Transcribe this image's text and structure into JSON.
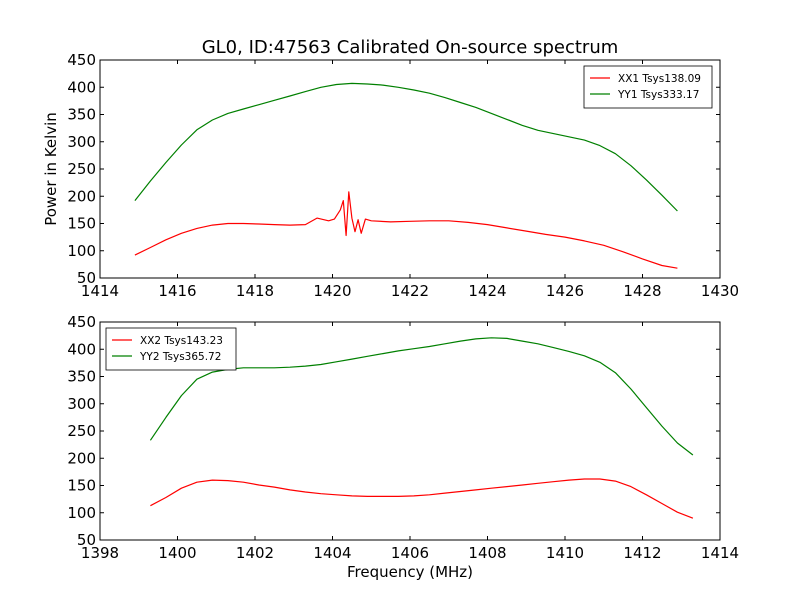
{
  "chart_data": [
    {
      "type": "line",
      "title": "GL0, ID:47563 Calibrated On-source spectrum",
      "xlabel": "",
      "ylabel": "Power in Kelvin",
      "xlim": [
        1414,
        1430
      ],
      "ylim": [
        50,
        450
      ],
      "xticks": [
        "1414",
        "1416",
        "1418",
        "1420",
        "1422",
        "1424",
        "1426",
        "1428",
        "1430"
      ],
      "yticks": [
        "50",
        "100",
        "150",
        "200",
        "250",
        "300",
        "350",
        "400",
        "450"
      ],
      "grid": false,
      "legend": "top-right",
      "series": [
        {
          "name": "XX1 Tsys138.09",
          "color": "#ff0000",
          "x": [
            1414.9,
            1415.3,
            1415.7,
            1416.1,
            1416.5,
            1416.9,
            1417.3,
            1417.7,
            1418.1,
            1418.5,
            1418.9,
            1419.3,
            1419.6,
            1419.9,
            1420.05,
            1420.2,
            1420.28,
            1420.35,
            1420.42,
            1420.5,
            1420.58,
            1420.66,
            1420.74,
            1420.85,
            1421.0,
            1421.5,
            1422.0,
            1422.5,
            1423.0,
            1423.5,
            1424.0,
            1424.5,
            1425.0,
            1425.5,
            1426.0,
            1426.5,
            1427.0,
            1427.5,
            1428.0,
            1428.5,
            1428.9
          ],
          "values": [
            92,
            106,
            120,
            132,
            141,
            147,
            150,
            150,
            149,
            148,
            147,
            148,
            160,
            155,
            158,
            175,
            192,
            128,
            208,
            160,
            135,
            157,
            132,
            158,
            155,
            153,
            154,
            155,
            155,
            152,
            148,
            142,
            136,
            130,
            125,
            118,
            110,
            98,
            85,
            73,
            68
          ]
        },
        {
          "name": "YY1 Tsys333.17",
          "color": "#008000",
          "x": [
            1414.9,
            1415.3,
            1415.7,
            1416.1,
            1416.5,
            1416.9,
            1417.3,
            1417.7,
            1418.1,
            1418.5,
            1418.9,
            1419.3,
            1419.7,
            1420.1,
            1420.5,
            1420.9,
            1421.3,
            1421.7,
            1422.1,
            1422.5,
            1422.9,
            1423.3,
            1423.7,
            1424.1,
            1424.5,
            1424.9,
            1425.3,
            1425.7,
            1426.1,
            1426.5,
            1426.9,
            1427.3,
            1427.7,
            1428.1,
            1428.5,
            1428.9
          ],
          "values": [
            192,
            228,
            262,
            294,
            322,
            340,
            352,
            360,
            368,
            376,
            384,
            392,
            400,
            405,
            407,
            406,
            404,
            400,
            395,
            389,
            381,
            372,
            363,
            352,
            341,
            330,
            321,
            315,
            309,
            303,
            293,
            278,
            256,
            230,
            202,
            173
          ]
        }
      ]
    },
    {
      "type": "line",
      "title": "",
      "xlabel": "Frequency (MHz)",
      "ylabel": "",
      "xlim": [
        1398,
        1414
      ],
      "ylim": [
        50,
        450
      ],
      "xticks": [
        "1398",
        "1400",
        "1402",
        "1404",
        "1406",
        "1408",
        "1410",
        "1412",
        "1414"
      ],
      "yticks": [
        "50",
        "100",
        "150",
        "200",
        "250",
        "300",
        "350",
        "400",
        "450"
      ],
      "grid": false,
      "legend": "top-left",
      "series": [
        {
          "name": "XX2 Tsys143.23",
          "color": "#ff0000",
          "x": [
            1399.3,
            1399.7,
            1400.1,
            1400.5,
            1400.9,
            1401.3,
            1401.7,
            1402.1,
            1402.5,
            1402.9,
            1403.3,
            1403.7,
            1404.1,
            1404.5,
            1404.9,
            1405.3,
            1405.7,
            1406.1,
            1406.5,
            1406.9,
            1407.3,
            1407.7,
            1408.1,
            1408.5,
            1408.9,
            1409.3,
            1409.7,
            1410.1,
            1410.5,
            1410.9,
            1411.3,
            1411.7,
            1412.1,
            1412.5,
            1412.9,
            1413.3
          ],
          "values": [
            113,
            128,
            145,
            156,
            160,
            159,
            156,
            151,
            147,
            142,
            138,
            135,
            133,
            131,
            130,
            130,
            130,
            131,
            133,
            136,
            139,
            142,
            145,
            148,
            151,
            154,
            157,
            160,
            162,
            162,
            158,
            148,
            133,
            117,
            101,
            90
          ]
        },
        {
          "name": "YY2 Tsys365.72",
          "color": "#008000",
          "x": [
            1399.3,
            1399.7,
            1400.1,
            1400.5,
            1400.9,
            1401.3,
            1401.7,
            1402.1,
            1402.5,
            1402.9,
            1403.3,
            1403.7,
            1404.1,
            1404.5,
            1404.9,
            1405.3,
            1405.7,
            1406.1,
            1406.5,
            1406.9,
            1407.3,
            1407.7,
            1408.1,
            1408.5,
            1408.9,
            1409.3,
            1409.7,
            1410.1,
            1410.5,
            1410.9,
            1411.3,
            1411.7,
            1412.1,
            1412.5,
            1412.9,
            1413.3
          ],
          "values": [
            233,
            275,
            315,
            345,
            358,
            363,
            366,
            366,
            366,
            367,
            369,
            372,
            377,
            382,
            387,
            392,
            397,
            401,
            405,
            410,
            415,
            419,
            421,
            420,
            415,
            410,
            403,
            396,
            388,
            376,
            357,
            327,
            293,
            259,
            228,
            206
          ]
        }
      ]
    }
  ]
}
